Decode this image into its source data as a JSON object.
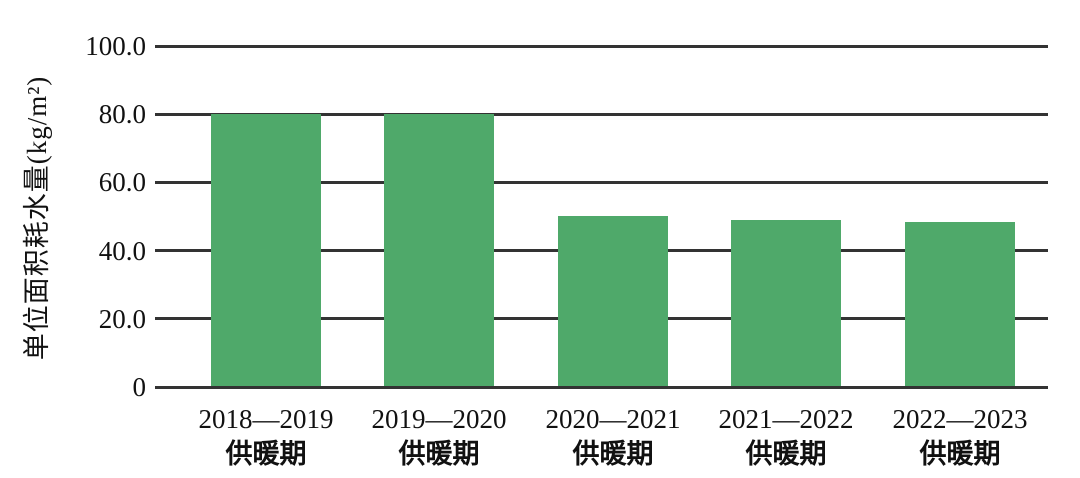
{
  "chart_data": {
    "type": "bar",
    "title": "",
    "ylabel": "单位面积耗水量(kg/m²)",
    "xlabel": "",
    "categories": [
      {
        "year": "2018—2019",
        "period": "供暖期"
      },
      {
        "year": "2019—2020",
        "period": "供暖期"
      },
      {
        "year": "2020—2021",
        "period": "供暖期"
      },
      {
        "year": "2021—2022",
        "period": "供暖期"
      },
      {
        "year": "2022—2023",
        "period": "供暖期"
      }
    ],
    "values": [
      80.0,
      80.0,
      50.1,
      49.1,
      48.4
    ],
    "ylim": [
      0,
      100
    ],
    "yticks": [
      {
        "value": 0,
        "label": "0"
      },
      {
        "value": 20,
        "label": "20.0"
      },
      {
        "value": 40,
        "label": "40.0"
      },
      {
        "value": 60,
        "label": "60.0"
      },
      {
        "value": 80,
        "label": "80.0"
      },
      {
        "value": 100,
        "label": "100.0"
      }
    ],
    "grid": "horizontal",
    "legend": "none",
    "colors": {
      "bar": "#4fa96a",
      "gridline": "#333333",
      "text": "#111111",
      "background": "#ffffff"
    }
  }
}
